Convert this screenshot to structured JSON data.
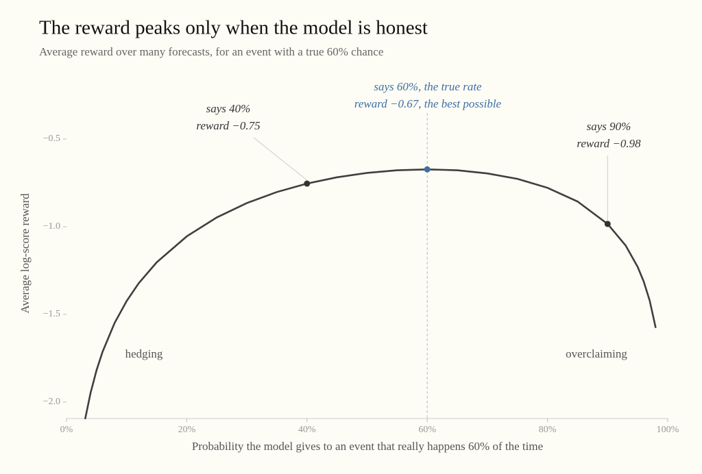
{
  "chart_data": {
    "type": "line",
    "title": "The reward peaks only when the model is honest",
    "subtitle": "Average reward over many forecasts, for an event with a true 60% chance",
    "x_label": "Probability the model gives to an event that really happens 60% of the time",
    "y_label": "Average log-score reward",
    "x": [
      3.1,
      4,
      5,
      6,
      8,
      10,
      12,
      15,
      20,
      25,
      30,
      35,
      40,
      45,
      50,
      55,
      60,
      65,
      70,
      75,
      80,
      85,
      90,
      93,
      95,
      96,
      97,
      98
    ],
    "series": [
      {
        "color": "#3f3f3f",
        "values": [
          -2.097,
          -1.948,
          -1.818,
          -1.713,
          -1.549,
          -1.424,
          -1.323,
          -1.203,
          -1.055,
          -0.947,
          -0.865,
          -0.802,
          -0.754,
          -0.718,
          -0.693,
          -0.678,
          -0.673,
          -0.678,
          -0.696,
          -0.727,
          -0.778,
          -0.856,
          -0.984,
          -1.107,
          -1.229,
          -1.312,
          -1.421,
          -1.577
        ]
      }
    ],
    "xlim": [
      0,
      100
    ],
    "ylim": [
      -2.1,
      -0.45
    ],
    "xticks": [
      {
        "value": 0,
        "label": "0%"
      },
      {
        "value": 20,
        "label": "20%"
      },
      {
        "value": 40,
        "label": "40%"
      },
      {
        "value": 60,
        "label": "60%"
      },
      {
        "value": 80,
        "label": "80%"
      },
      {
        "value": 100,
        "label": "100%"
      }
    ],
    "yticks": [
      {
        "value": -2.0,
        "label": "−2.0"
      },
      {
        "value": -1.5,
        "label": "−1.5"
      },
      {
        "value": -1.0,
        "label": "−1.0"
      },
      {
        "value": -0.5,
        "label": "−0.5"
      }
    ],
    "annotations": [
      {
        "x": 40,
        "y": -0.754,
        "color": "#333333",
        "lines": [
          "says 40%",
          "reward −0.75"
        ]
      },
      {
        "x": 60,
        "y": -0.673,
        "color": "#3d6fa5",
        "lines": [
          "says 60%, the true rate",
          "reward −0.67, the best possible"
        ]
      },
      {
        "x": 90,
        "y": -0.984,
        "color": "#333333",
        "lines": [
          "says 90%",
          "reward −0.98"
        ]
      }
    ],
    "region_labels": [
      "hedging",
      "overclaiming"
    ]
  }
}
